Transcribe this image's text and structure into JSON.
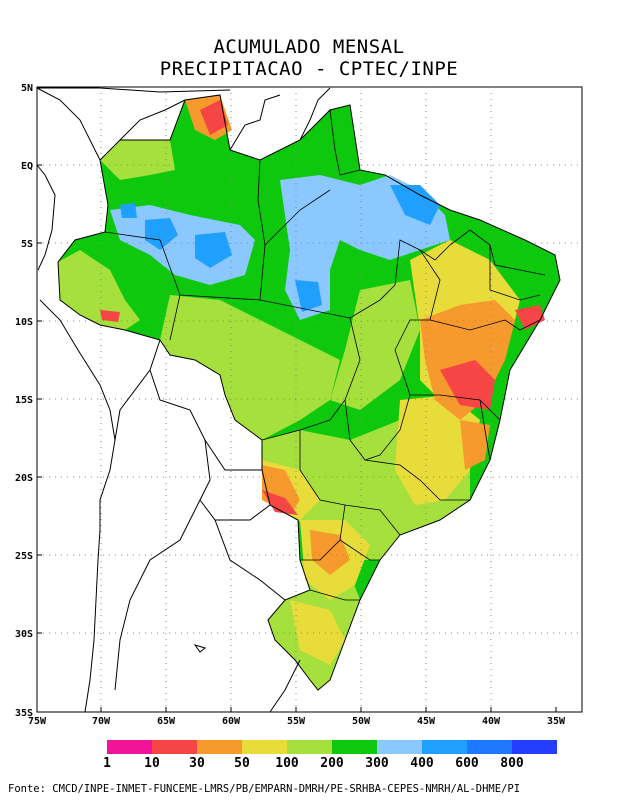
{
  "title_line1": "ACUMULADO MENSAL",
  "title_line2": "PRECIPITACAO - CPTEC/INPE",
  "lat_ticks": [
    "5N",
    "EQ",
    "5S",
    "10S",
    "15S",
    "20S",
    "25S",
    "30S",
    "35S"
  ],
  "lon_ticks": [
    "75W",
    "70W",
    "65W",
    "60W",
    "55W",
    "50W",
    "45W",
    "40W",
    "35W"
  ],
  "legend": {
    "colors": [
      "#f0149a",
      "#f54545",
      "#f79a2e",
      "#e8dc3a",
      "#a6e03c",
      "#0ec80e",
      "#8ac8ff",
      "#1fa0ff",
      "#1e78ff",
      "#233cff"
    ],
    "labels": [
      "1",
      "10",
      "30",
      "50",
      "100",
      "200",
      "300",
      "400",
      "600",
      "800"
    ]
  },
  "source": "Fonte: CMCD/INPE-INMET-FUNCEME-LMRS/PB/EMPARN-DMRH/PE-SRHBA-CEPES-NMRH/AL-DHME/PI"
}
